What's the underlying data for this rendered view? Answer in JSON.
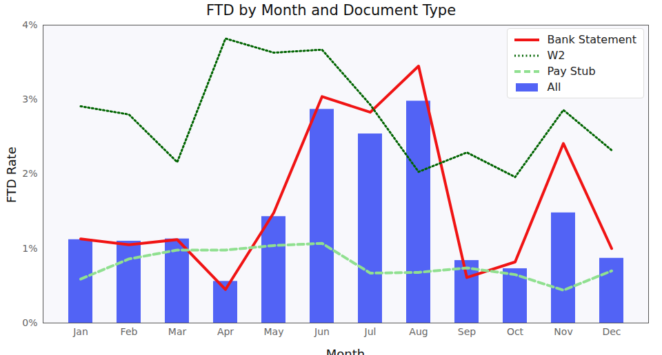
{
  "chart_data": {
    "type": "combo",
    "title": "FTD by Month and Document Type",
    "x_label": "Month",
    "y_label": "FTD Rate",
    "categories": [
      "Jan",
      "Feb",
      "Mar",
      "Apr",
      "May",
      "Jun",
      "Jul",
      "Aug",
      "Sep",
      "Oct",
      "Nov",
      "Dec"
    ],
    "series": [
      {
        "name": "Bank Statement",
        "type": "line",
        "color": "#f01414",
        "line_style": "solid",
        "values": [
          1.13,
          1.05,
          1.12,
          0.45,
          1.48,
          3.04,
          2.83,
          3.45,
          0.61,
          0.82,
          2.41,
          1.0
        ]
      },
      {
        "name": "W2",
        "type": "line",
        "color": "#006400",
        "line_style": "dotted",
        "values": [
          2.91,
          2.8,
          2.16,
          3.82,
          3.63,
          3.67,
          2.93,
          2.03,
          2.29,
          1.96,
          2.86,
          2.32
        ]
      },
      {
        "name": "Pay Stub",
        "type": "line",
        "color": "#90e090",
        "line_style": "dashed",
        "values": [
          0.59,
          0.86,
          0.98,
          0.98,
          1.04,
          1.07,
          0.67,
          0.68,
          0.74,
          0.65,
          0.44,
          0.7
        ]
      },
      {
        "name": "All",
        "type": "bar",
        "color": "#5263f5",
        "values": [
          1.12,
          1.1,
          1.13,
          0.56,
          1.43,
          2.87,
          2.54,
          2.98,
          0.84,
          0.73,
          1.48,
          0.87
        ]
      }
    ],
    "ylim": [
      0,
      4
    ],
    "yticks": [
      {
        "value": 0,
        "label": "0%"
      },
      {
        "value": 1,
        "label": "1%"
      },
      {
        "value": 2,
        "label": "2%"
      },
      {
        "value": 3,
        "label": "3%"
      },
      {
        "value": 4,
        "label": "4%"
      }
    ],
    "grid": false,
    "legend": "upper right"
  }
}
